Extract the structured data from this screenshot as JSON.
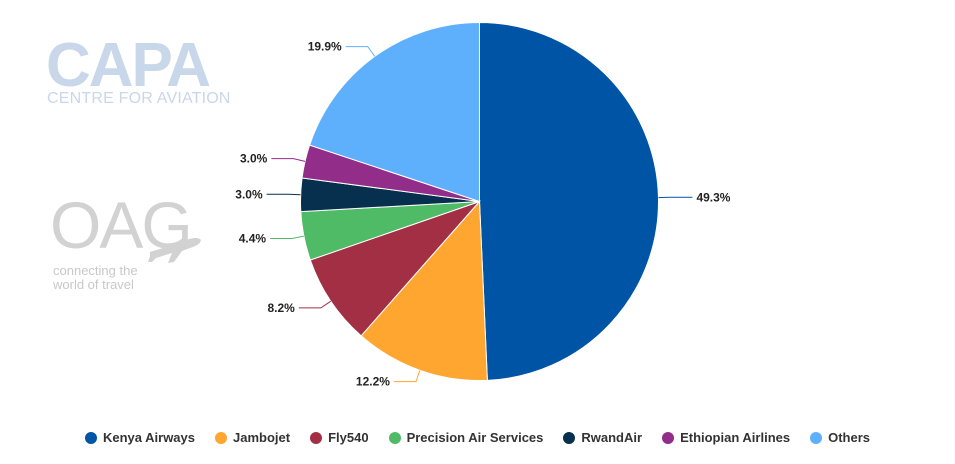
{
  "logos": {
    "capa_main": "CAPA",
    "capa_sub": "CENTRE FOR AVIATION",
    "oag_main": "OAG",
    "oag_sub_line1": "connecting the",
    "oag_sub_line2": "world of travel",
    "capa_color": "#c9d7ea",
    "oag_color": "#d2d2d2"
  },
  "chart_data": {
    "type": "pie",
    "title": "",
    "series": [
      {
        "categories": [
          "Kenya Airways",
          "Jambojet",
          "Fly540",
          "Precision Air Services",
          "RwandAir",
          "Ethiopian Airlines",
          "Others"
        ],
        "values": [
          49.3,
          12.2,
          8.2,
          4.4,
          3.0,
          3.0,
          19.9
        ],
        "labels": [
          "49.3%",
          "12.2%",
          "8.2%",
          "4.4%",
          "3.0%",
          "3.0%",
          "19.9%"
        ],
        "colors": [
          "#0054a6",
          "#ffa630",
          "#a32f45",
          "#4fbb67",
          "#06304d",
          "#922d8a",
          "#5eb0fd"
        ]
      }
    ],
    "legend": {
      "position": "bottom",
      "entries": [
        "Kenya Airways",
        "Jambojet",
        "Fly540",
        "Precision Air Services",
        "RwandAir",
        "Ethiopian Airlines",
        "Others"
      ]
    },
    "start_angle_deg": 0,
    "direction": "clockwise"
  }
}
